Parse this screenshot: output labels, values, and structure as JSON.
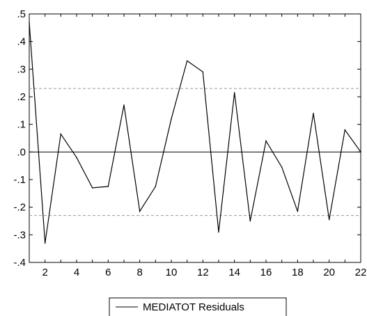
{
  "chart_data": {
    "type": "line",
    "title": "",
    "xlabel": "",
    "ylabel": "",
    "xlim": [
      1,
      22
    ],
    "ylim": [
      -0.4,
      0.5
    ],
    "x_ticks": [
      "2",
      "4",
      "6",
      "8",
      "10",
      "12",
      "14",
      "16",
      "18",
      "20",
      "22"
    ],
    "y_ticks": [
      ".5",
      ".4",
      ".3",
      ".2",
      ".1",
      ".0",
      "-.1",
      "-.2",
      "-.3",
      "-.4"
    ],
    "y_tick_values": [
      0.5,
      0.4,
      0.3,
      0.2,
      0.1,
      0.0,
      -0.1,
      -0.2,
      -0.3,
      -0.4
    ],
    "reference_lines": {
      "zero": 0.0,
      "upper_band": 0.23,
      "lower_band": -0.23,
      "band_style": "dashed"
    },
    "grid": false,
    "legend_position": "bottom-center",
    "series": [
      {
        "name": "MEDIATOT Residuals",
        "color": "#000000",
        "x": [
          1,
          2,
          3,
          4,
          5,
          6,
          7,
          8,
          9,
          10,
          11,
          12,
          13,
          14,
          15,
          16,
          17,
          18,
          19,
          20,
          21,
          22
        ],
        "values": [
          0.47,
          -0.33,
          0.065,
          -0.02,
          -0.13,
          -0.125,
          0.17,
          -0.215,
          -0.125,
          0.12,
          0.33,
          0.29,
          -0.29,
          0.215,
          -0.25,
          0.04,
          -0.055,
          -0.215,
          0.14,
          -0.245,
          0.08,
          0.0
        ]
      }
    ]
  },
  "legend": {
    "label": "MEDIATOT Residuals"
  },
  "colors": {
    "line": "#000000",
    "band": "#999999",
    "axis": "#000000"
  }
}
